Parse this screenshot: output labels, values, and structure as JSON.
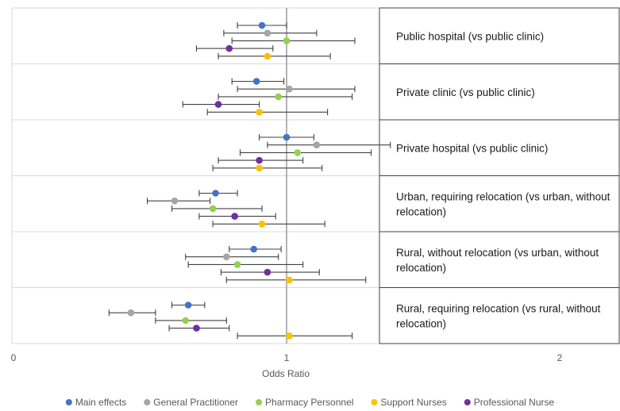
{
  "chart_data": {
    "type": "forest-plot",
    "xlabel": "Odds Ratio",
    "xlim": [
      0,
      2.2
    ],
    "xticks": [
      "0",
      "1",
      "2"
    ],
    "reference_line": 1,
    "series": [
      {
        "name": "Main effects",
        "color": "#4472c4"
      },
      {
        "name": "General Practitioner",
        "color": "#a5a5a5"
      },
      {
        "name": "Pharmacy Personnel",
        "color": "#92d050"
      },
      {
        "name": "Support Nurses",
        "color": "#ffc000"
      },
      {
        "name": "Professional Nurse",
        "color": "#7030a0"
      }
    ],
    "groups": [
      {
        "label": "Public hospital (vs public clinic)",
        "points": [
          {
            "series": "Main effects",
            "or": 0.91,
            "lo": 0.82,
            "hi": 1.0
          },
          {
            "series": "General Practitioner",
            "or": 0.93,
            "lo": 0.77,
            "hi": 1.11
          },
          {
            "series": "Pharmacy Personnel",
            "or": 1.0,
            "lo": 0.8,
            "hi": 1.25
          },
          {
            "series": "Professional Nurse",
            "or": 0.79,
            "lo": 0.67,
            "hi": 0.95
          },
          {
            "series": "Support Nurses",
            "or": 0.93,
            "lo": 0.75,
            "hi": 1.16
          }
        ]
      },
      {
        "label": "Private clinic (vs public clinic)",
        "points": [
          {
            "series": "Main effects",
            "or": 0.89,
            "lo": 0.8,
            "hi": 0.99
          },
          {
            "series": "General Practitioner",
            "or": 1.01,
            "lo": 0.82,
            "hi": 1.25
          },
          {
            "series": "Pharmacy Personnel",
            "or": 0.97,
            "lo": 0.75,
            "hi": 1.24
          },
          {
            "series": "Professional Nurse",
            "or": 0.75,
            "lo": 0.62,
            "hi": 0.9
          },
          {
            "series": "Support Nurses",
            "or": 0.9,
            "lo": 0.71,
            "hi": 1.15
          }
        ]
      },
      {
        "label": "Private hospital (vs public clinic)",
        "points": [
          {
            "series": "Main effects",
            "or": 1.0,
            "lo": 0.9,
            "hi": 1.1
          },
          {
            "series": "General Practitioner",
            "or": 1.11,
            "lo": 0.93,
            "hi": 1.38
          },
          {
            "series": "Pharmacy Personnel",
            "or": 1.04,
            "lo": 0.83,
            "hi": 1.31
          },
          {
            "series": "Professional Nurse",
            "or": 0.9,
            "lo": 0.75,
            "hi": 1.06
          },
          {
            "series": "Support Nurses",
            "or": 0.9,
            "lo": 0.73,
            "hi": 1.13
          }
        ]
      },
      {
        "label": "Urban, requiring relocation (vs urban, without relocation)",
        "points": [
          {
            "series": "Main effects",
            "or": 0.74,
            "lo": 0.68,
            "hi": 0.82
          },
          {
            "series": "General Practitioner",
            "or": 0.59,
            "lo": 0.49,
            "hi": 0.72
          },
          {
            "series": "Pharmacy Personnel",
            "or": 0.73,
            "lo": 0.58,
            "hi": 0.91
          },
          {
            "series": "Professional Nurse",
            "or": 0.81,
            "lo": 0.68,
            "hi": 0.96
          },
          {
            "series": "Support Nurses",
            "or": 0.91,
            "lo": 0.73,
            "hi": 1.14
          }
        ]
      },
      {
        "label": "Rural, without relocation (vs urban, without relocation)",
        "points": [
          {
            "series": "Main effects",
            "or": 0.88,
            "lo": 0.79,
            "hi": 0.98
          },
          {
            "series": "General Practitioner",
            "or": 0.78,
            "lo": 0.63,
            "hi": 0.97
          },
          {
            "series": "Pharmacy Personnel",
            "or": 0.82,
            "lo": 0.64,
            "hi": 1.06
          },
          {
            "series": "Professional Nurse",
            "or": 0.93,
            "lo": 0.76,
            "hi": 1.12
          },
          {
            "series": "Support Nurses",
            "or": 1.01,
            "lo": 0.78,
            "hi": 1.29
          }
        ]
      },
      {
        "label": "Rural, requiring relocation (vs rural, without relocation)",
        "points": [
          {
            "series": "Main effects",
            "or": 0.64,
            "lo": 0.58,
            "hi": 0.7
          },
          {
            "series": "General Practitioner",
            "or": 0.43,
            "lo": 0.35,
            "hi": 0.52
          },
          {
            "series": "Pharmacy Personnel",
            "or": 0.63,
            "lo": 0.52,
            "hi": 0.78
          },
          {
            "series": "Professional Nurse",
            "or": 0.67,
            "lo": 0.57,
            "hi": 0.79
          },
          {
            "series": "Support Nurses",
            "or": 1.01,
            "lo": 0.82,
            "hi": 1.24
          }
        ]
      }
    ],
    "legend_position": "bottom"
  }
}
